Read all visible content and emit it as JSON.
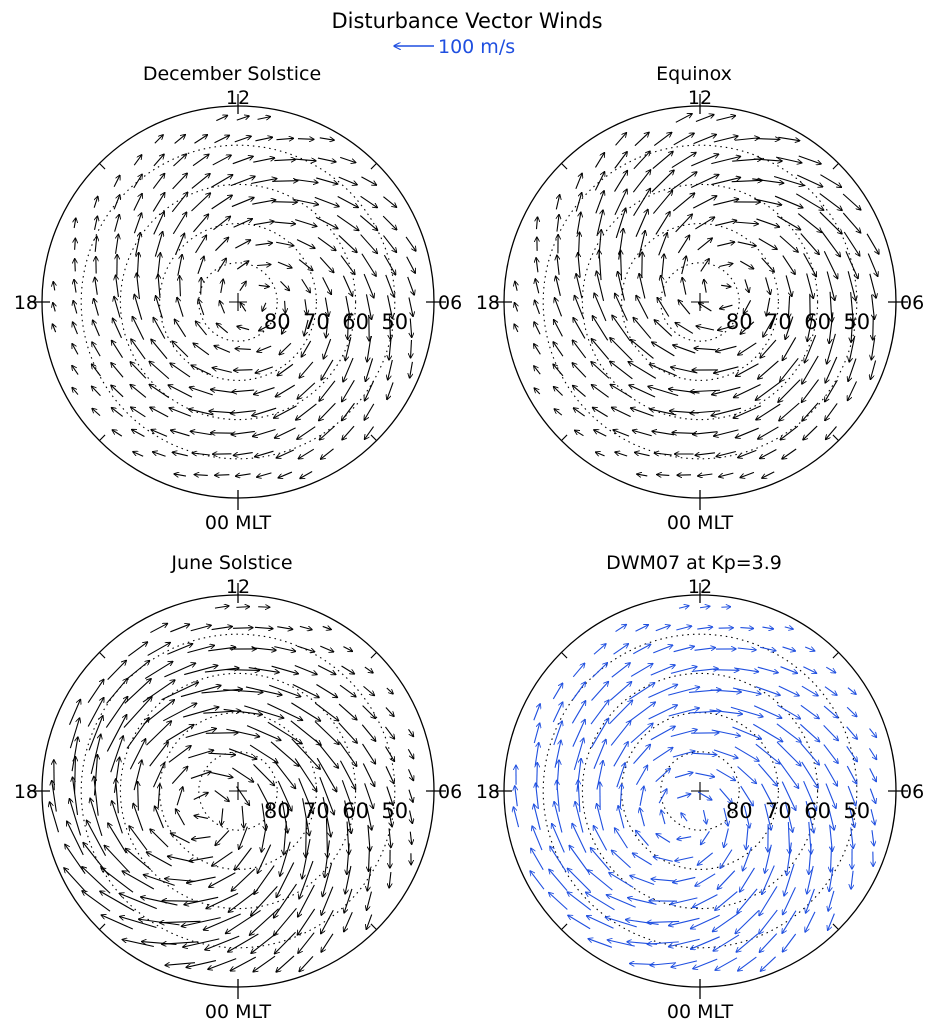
{
  "title": "Disturbance Vector Winds",
  "scale": {
    "label": "100 m/s",
    "color": "#1f4fe0"
  },
  "panel_labels": {
    "top": "12",
    "bottom": "00 MLT",
    "left": "18",
    "right": "06",
    "lat_labels": [
      "80",
      "70",
      "60",
      "50"
    ]
  },
  "chart_data": [
    {
      "type": "vector-field-polar",
      "title": "December Solstice",
      "color": "#000000",
      "lat_circles": [
        80,
        70,
        60,
        50
      ],
      "lat_range": [
        40,
        90
      ],
      "vortex": {
        "strength": 0.7,
        "center_mlt": 6,
        "center_offset": 0.1,
        "sign": 1
      }
    },
    {
      "type": "vector-field-polar",
      "title": "Equinox",
      "color": "#000000",
      "lat_circles": [
        80,
        70,
        60,
        50
      ],
      "lat_range": [
        40,
        90
      ],
      "vortex": {
        "strength": 0.85,
        "center_mlt": 8,
        "center_offset": 0.15,
        "sign": 1
      }
    },
    {
      "type": "vector-field-polar",
      "title": "June Solstice",
      "color": "#000000",
      "lat_circles": [
        80,
        70,
        60,
        50
      ],
      "lat_range": [
        40,
        90
      ],
      "vortex": {
        "strength": 1.1,
        "center_mlt": 20,
        "center_offset": 0.2,
        "sign": 1
      }
    },
    {
      "type": "vector-field-polar",
      "title": "DWM07 at Kp=3.9",
      "color": "#1f4fe0",
      "lat_circles": [
        80,
        70,
        60,
        50
      ],
      "lat_range": [
        40,
        90
      ],
      "vortex": {
        "strength": 0.9,
        "center_mlt": 22,
        "center_offset": 0.15,
        "sign": 1
      }
    }
  ]
}
